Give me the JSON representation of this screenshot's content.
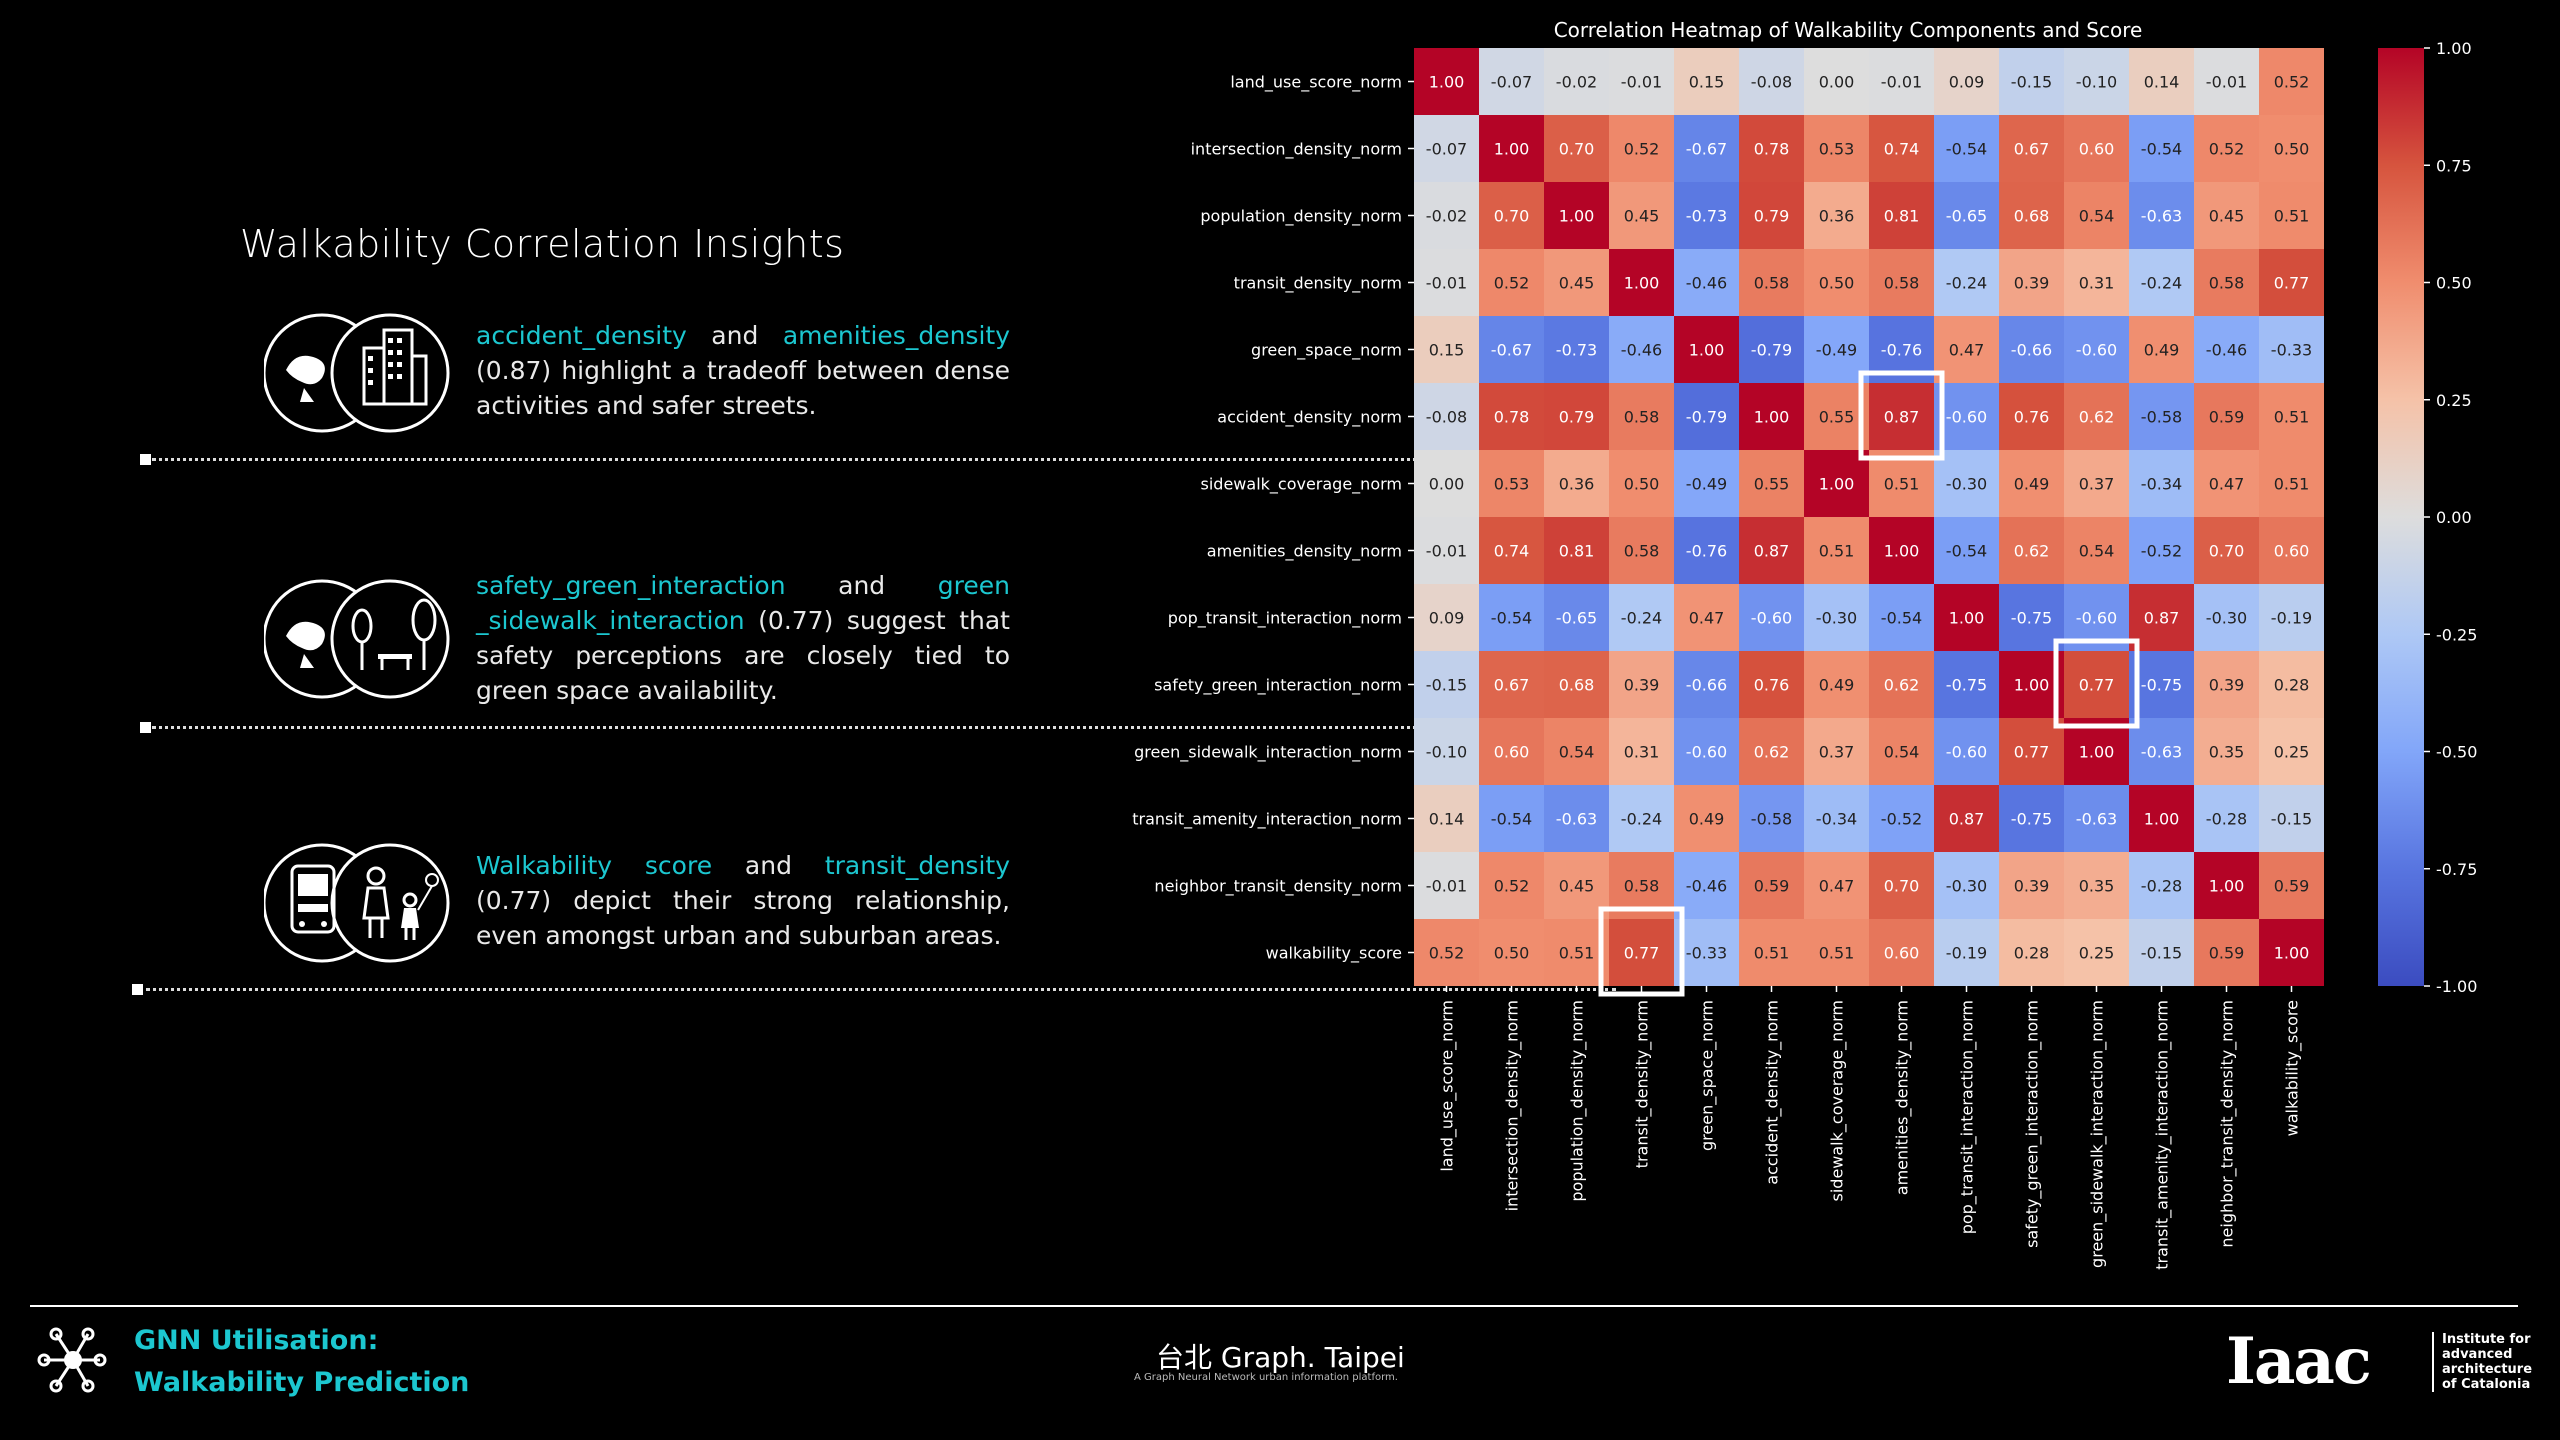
{
  "insights": {
    "title": "Walkability Correlation Insights",
    "items": [
      {
        "a": "accident_density",
        "mid": " and ",
        "b": "amenities_density",
        "rest": " (0.87) highlight a tradeoff between dense activities and safer streets."
      },
      {
        "a": "safety_green_interaction",
        "mid": " and ",
        "b": "green _sidewalk_interaction",
        "rest": " (0.77) suggest that safety perceptions are closely tied to green space availability."
      },
      {
        "a": "Walkability score",
        "mid": " and ",
        "b": "transit_density",
        "rest": " (0.77) depict their strong relationship, even amongst urban and suburban areas."
      }
    ]
  },
  "footer": {
    "project_line1": "GNN Utilisation:",
    "project_line2": "Walkability Prediction",
    "brand": "台北 Graph. Taipei",
    "brand_sub": "A Graph Neural Network urban information platform.",
    "logo": "Iaac",
    "institute": [
      "Institute for",
      "advanced",
      "architecture",
      "of Catalonia"
    ]
  },
  "colors": {
    "accent": "#1cc7d0",
    "low": "#3b4cc0",
    "mid": "#dddddd",
    "high": "#b40426"
  },
  "chart_data": {
    "type": "heatmap",
    "title": "Correlation Heatmap of Walkability Components and Score",
    "labels": [
      "land_use_score_norm",
      "intersection_density_norm",
      "population_density_norm",
      "transit_density_norm",
      "green_space_norm",
      "accident_density_norm",
      "sidewalk_coverage_norm",
      "amenities_density_norm",
      "pop_transit_interaction_norm",
      "safety_green_interaction_norm",
      "green_sidewalk_interaction_norm",
      "transit_amenity_interaction_norm",
      "neighbor_transit_density_norm",
      "walkability_score"
    ],
    "values": [
      [
        1.0,
        -0.07,
        -0.02,
        -0.01,
        0.15,
        -0.08,
        -0.0,
        -0.01,
        0.09,
        -0.15,
        -0.1,
        0.14,
        -0.01,
        0.52
      ],
      [
        -0.07,
        1.0,
        0.7,
        0.52,
        -0.67,
        0.78,
        0.53,
        0.74,
        -0.54,
        0.67,
        0.6,
        -0.54,
        0.52,
        0.5
      ],
      [
        -0.02,
        0.7,
        1.0,
        0.45,
        -0.73,
        0.79,
        0.36,
        0.81,
        -0.65,
        0.68,
        0.54,
        -0.63,
        0.45,
        0.51
      ],
      [
        -0.01,
        0.52,
        0.45,
        1.0,
        -0.46,
        0.58,
        0.5,
        0.58,
        -0.24,
        0.39,
        0.31,
        -0.24,
        0.58,
        0.77
      ],
      [
        0.15,
        -0.67,
        -0.73,
        -0.46,
        1.0,
        -0.79,
        -0.49,
        -0.76,
        0.47,
        -0.66,
        -0.6,
        0.49,
        -0.46,
        -0.33
      ],
      [
        -0.08,
        0.78,
        0.79,
        0.58,
        -0.79,
        1.0,
        0.55,
        0.87,
        -0.6,
        0.76,
        0.62,
        -0.58,
        0.59,
        0.51
      ],
      [
        -0.0,
        0.53,
        0.36,
        0.5,
        -0.49,
        0.55,
        1.0,
        0.51,
        -0.3,
        0.49,
        0.37,
        -0.34,
        0.47,
        0.51
      ],
      [
        -0.01,
        0.74,
        0.81,
        0.58,
        -0.76,
        0.87,
        0.51,
        1.0,
        -0.54,
        0.62,
        0.54,
        -0.52,
        0.7,
        0.6
      ],
      [
        0.09,
        -0.54,
        -0.65,
        -0.24,
        0.47,
        -0.6,
        -0.3,
        -0.54,
        1.0,
        -0.75,
        -0.6,
        0.87,
        -0.3,
        -0.19
      ],
      [
        -0.15,
        0.67,
        0.68,
        0.39,
        -0.66,
        0.76,
        0.49,
        0.62,
        -0.75,
        1.0,
        0.77,
        -0.75,
        0.39,
        0.28
      ],
      [
        -0.1,
        0.6,
        0.54,
        0.31,
        -0.6,
        0.62,
        0.37,
        0.54,
        -0.6,
        0.77,
        1.0,
        -0.63,
        0.35,
        0.25
      ],
      [
        0.14,
        -0.54,
        -0.63,
        -0.24,
        0.49,
        -0.58,
        -0.34,
        -0.52,
        0.87,
        -0.75,
        -0.63,
        1.0,
        -0.28,
        -0.15
      ],
      [
        -0.01,
        0.52,
        0.45,
        0.58,
        -0.46,
        0.59,
        0.47,
        0.7,
        -0.3,
        0.39,
        0.35,
        -0.28,
        1.0,
        0.59
      ],
      [
        0.52,
        0.5,
        0.51,
        0.77,
        -0.33,
        0.51,
        0.51,
        0.6,
        -0.19,
        0.28,
        0.25,
        -0.15,
        0.59,
        1.0
      ]
    ],
    "vmin": -1.0,
    "vmax": 1.0,
    "colorbar_ticks": [
      "1.00",
      "0.75",
      "0.50",
      "0.25",
      "0.00",
      "-0.25",
      "-0.50",
      "-0.75",
      "-1.00"
    ],
    "highlighted_cells": [
      [
        5,
        7
      ],
      [
        9,
        10
      ],
      [
        13,
        3
      ]
    ]
  }
}
